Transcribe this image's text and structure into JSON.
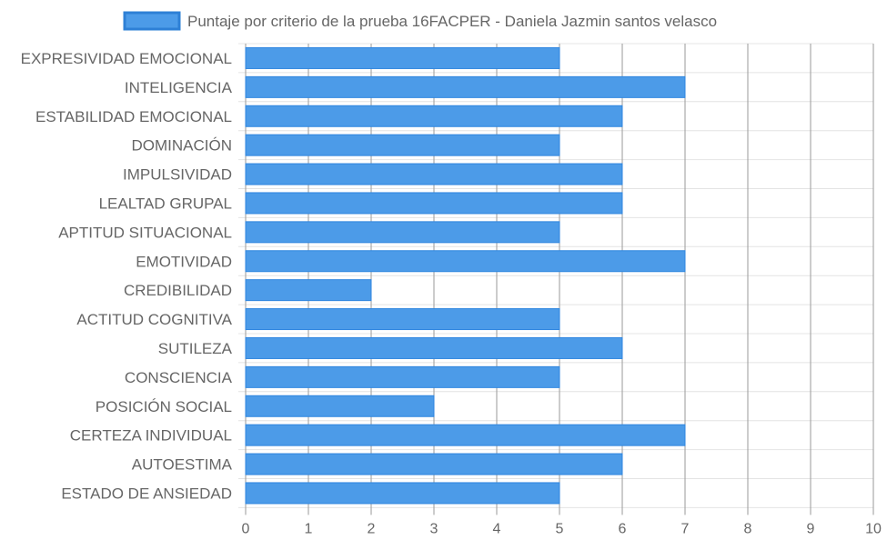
{
  "chart_data": {
    "type": "bar",
    "orientation": "horizontal",
    "categories": [
      "EXPRESIVIDAD EMOCIONAL",
      "INTELIGENCIA",
      "ESTABILIDAD EMOCIONAL",
      "DOMINACIÓN",
      "IMPULSIVIDAD",
      "LEALTAD GRUPAL",
      "APTITUD SITUACIONAL",
      "EMOTIVIDAD",
      "CREDIBILIDAD",
      "ACTITUD COGNITIVA",
      "SUTILEZA",
      "CONSCIENCIA",
      "POSICIÓN SOCIAL",
      "CERTEZA INDIVIDUAL",
      "AUTOESTIMA",
      "ESTADO DE ANSIEDAD"
    ],
    "series": [
      {
        "name": "Puntaje por criterio de la prueba 16FACPER - Daniela Jazmin santos velasco",
        "values": [
          5,
          7,
          6,
          5,
          6,
          6,
          5,
          7,
          2,
          5,
          6,
          5,
          3,
          7,
          6,
          5
        ]
      }
    ],
    "x_ticks": [
      "0",
      "1",
      "2",
      "3",
      "4",
      "5",
      "6",
      "7",
      "8",
      "9",
      "10"
    ],
    "xlim": [
      0,
      10
    ],
    "grid": true,
    "legend_position": "top-center",
    "colors": {
      "bar_fill": "#4c9be8",
      "bar_stroke": "#2f86df",
      "legend_fill": "#4c9be8",
      "legend_stroke": "#2e80d6",
      "grid_vertical": "#9a9a9a",
      "grid_horizontal": "#e4e4e4",
      "text": "#666666"
    }
  }
}
